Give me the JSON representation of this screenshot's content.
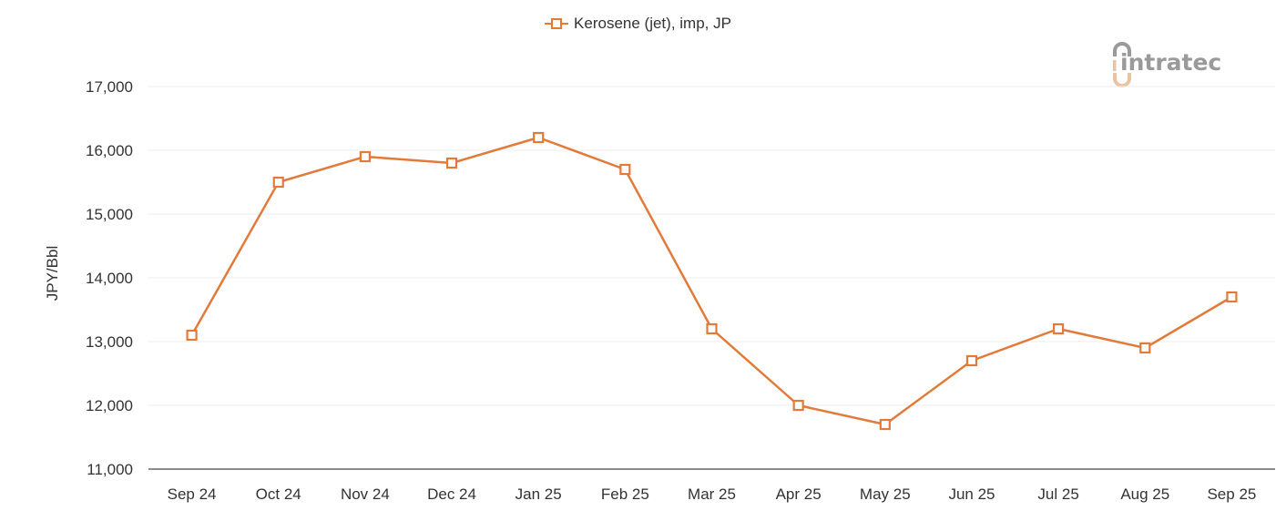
{
  "legend": {
    "label": "Kerosene (jet), imp, JP",
    "marker": "hollow-square-line-icon"
  },
  "logo": {
    "text": "intratec"
  },
  "colors": {
    "series": "#E07B3C",
    "grid": "#EEEEEE",
    "axis": "#666666",
    "text": "#333333",
    "logo_gray": "#9A9A9A",
    "logo_accent": "#E8C4A4"
  },
  "chart_data": {
    "type": "line",
    "title": "",
    "xlabel": "",
    "ylabel": "JPY/Bbl",
    "categories": [
      "Sep 24",
      "Oct 24",
      "Nov 24",
      "Dec 24",
      "Jan 25",
      "Feb 25",
      "Mar 25",
      "Apr 25",
      "May 25",
      "Jun 25",
      "Jul 25",
      "Aug 25",
      "Sep 25"
    ],
    "series": [
      {
        "name": "Kerosene (jet), imp, JP",
        "values": [
          13100,
          15500,
          15900,
          15800,
          16200,
          15700,
          13200,
          12000,
          11700,
          12700,
          13200,
          12900,
          13700
        ]
      }
    ],
    "ylim": [
      11000,
      17000
    ],
    "yticks": [
      11000,
      12000,
      13000,
      14000,
      15000,
      16000,
      17000
    ],
    "ytick_labels": [
      "11,000",
      "12,000",
      "13,000",
      "14,000",
      "15,000",
      "16,000",
      "17,000"
    ],
    "grid": true,
    "legend_position": "top-center",
    "marker": "hollow-square"
  }
}
